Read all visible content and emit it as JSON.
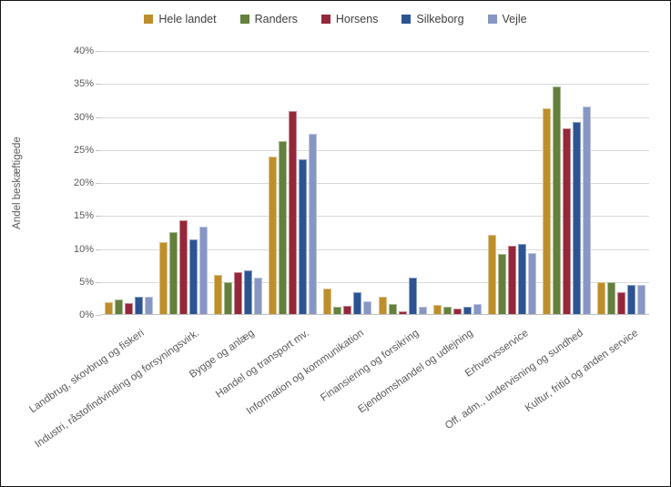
{
  "frame": {
    "background": "#FFFFFF",
    "border_color": "#141414"
  },
  "colors": {
    "gridline": "#D9D9D9",
    "axis_line": "#BFBFBF",
    "tick_text": "#595959",
    "legend_text": "#404040"
  },
  "chart_data": {
    "type": "bar",
    "title": "",
    "xlabel": "",
    "ylabel": "Andel beskæftigede",
    "ylim": [
      0,
      40
    ],
    "grid": true,
    "legend_position": "top",
    "yticks": [
      {
        "value": 0,
        "label": "0%"
      },
      {
        "value": 5,
        "label": "5%"
      },
      {
        "value": 10,
        "label": "10%"
      },
      {
        "value": 15,
        "label": "15%"
      },
      {
        "value": 20,
        "label": "20%"
      },
      {
        "value": 25,
        "label": "25%"
      },
      {
        "value": 30,
        "label": "30%"
      },
      {
        "value": 35,
        "label": "35%"
      },
      {
        "value": 40,
        "label": "40%"
      }
    ],
    "categories": [
      "Landbrug, skovbrug og fiskeri",
      "Industri, råstofindvinding og forsyningsvirk.",
      "Bygge og anlæg",
      "Handel og transport mv.",
      "Information og kommunikation",
      "Finansiering og forsikring",
      "Ejendomshandel og udlejning",
      "Erhvervsservice",
      "Off. adm., undervisning og sundhed",
      "Kultur, fritid og anden service"
    ],
    "series": [
      {
        "name": "Hele landet",
        "color": "#BE8E2B",
        "values": [
          2.0,
          11.0,
          6.1,
          24.0,
          4.0,
          2.8,
          1.5,
          12.2,
          31.3,
          4.9
        ]
      },
      {
        "name": "Randers",
        "color": "#63803C",
        "values": [
          2.3,
          12.6,
          5.0,
          26.3,
          1.2,
          1.7,
          1.3,
          9.3,
          34.6,
          5.0
        ]
      },
      {
        "name": "Horsens",
        "color": "#94283A",
        "values": [
          1.8,
          14.4,
          6.5,
          30.9,
          1.4,
          0.6,
          1.0,
          10.5,
          28.3,
          3.4
        ]
      },
      {
        "name": "Silkeborg",
        "color": "#2C5492",
        "values": [
          2.7,
          11.5,
          6.7,
          23.6,
          3.5,
          5.7,
          1.3,
          10.7,
          29.2,
          4.5
        ]
      },
      {
        "name": "Vejle",
        "color": "#8796C4",
        "values": [
          2.7,
          13.4,
          5.6,
          27.5,
          2.1,
          1.2,
          1.7,
          9.4,
          31.6,
          4.5
        ]
      }
    ]
  }
}
